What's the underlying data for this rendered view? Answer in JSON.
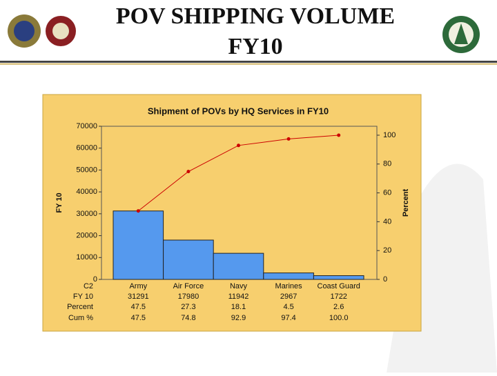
{
  "title_lines": [
    "POV SHIPPING VOLUME",
    "FY10"
  ],
  "chart_data": {
    "type": "pareto",
    "title": "Shipment of POVs by HQ Services in FY10",
    "y_label": "FY 10",
    "y2_label": "Percent",
    "table_header": "C2",
    "categories": [
      "Army",
      "Air Force",
      "Navy",
      "Marines",
      "Coast Guard"
    ],
    "series": [
      {
        "name": "FY 10",
        "color": "#5599ee",
        "values": [
          31291,
          17980,
          11942,
          2967,
          1722
        ]
      },
      {
        "name": "Percent",
        "values": [
          47.5,
          27.3,
          18.1,
          4.5,
          2.6
        ]
      },
      {
        "name": "Cum %",
        "color": "#cc0000",
        "axis": "y2",
        "values": [
          47.5,
          74.8,
          92.9,
          97.4,
          100
        ],
        "value_labels": [
          "47.5",
          "74.8",
          "92.9",
          "97.4",
          "100.0"
        ]
      }
    ],
    "ylim": [
      0,
      70000
    ],
    "yticks": [
      0,
      10000,
      20000,
      30000,
      40000,
      50000,
      60000,
      70000
    ],
    "y2lim": [
      0,
      106.2
    ],
    "y2ticks": [
      0,
      20,
      40,
      60,
      80,
      100
    ]
  }
}
